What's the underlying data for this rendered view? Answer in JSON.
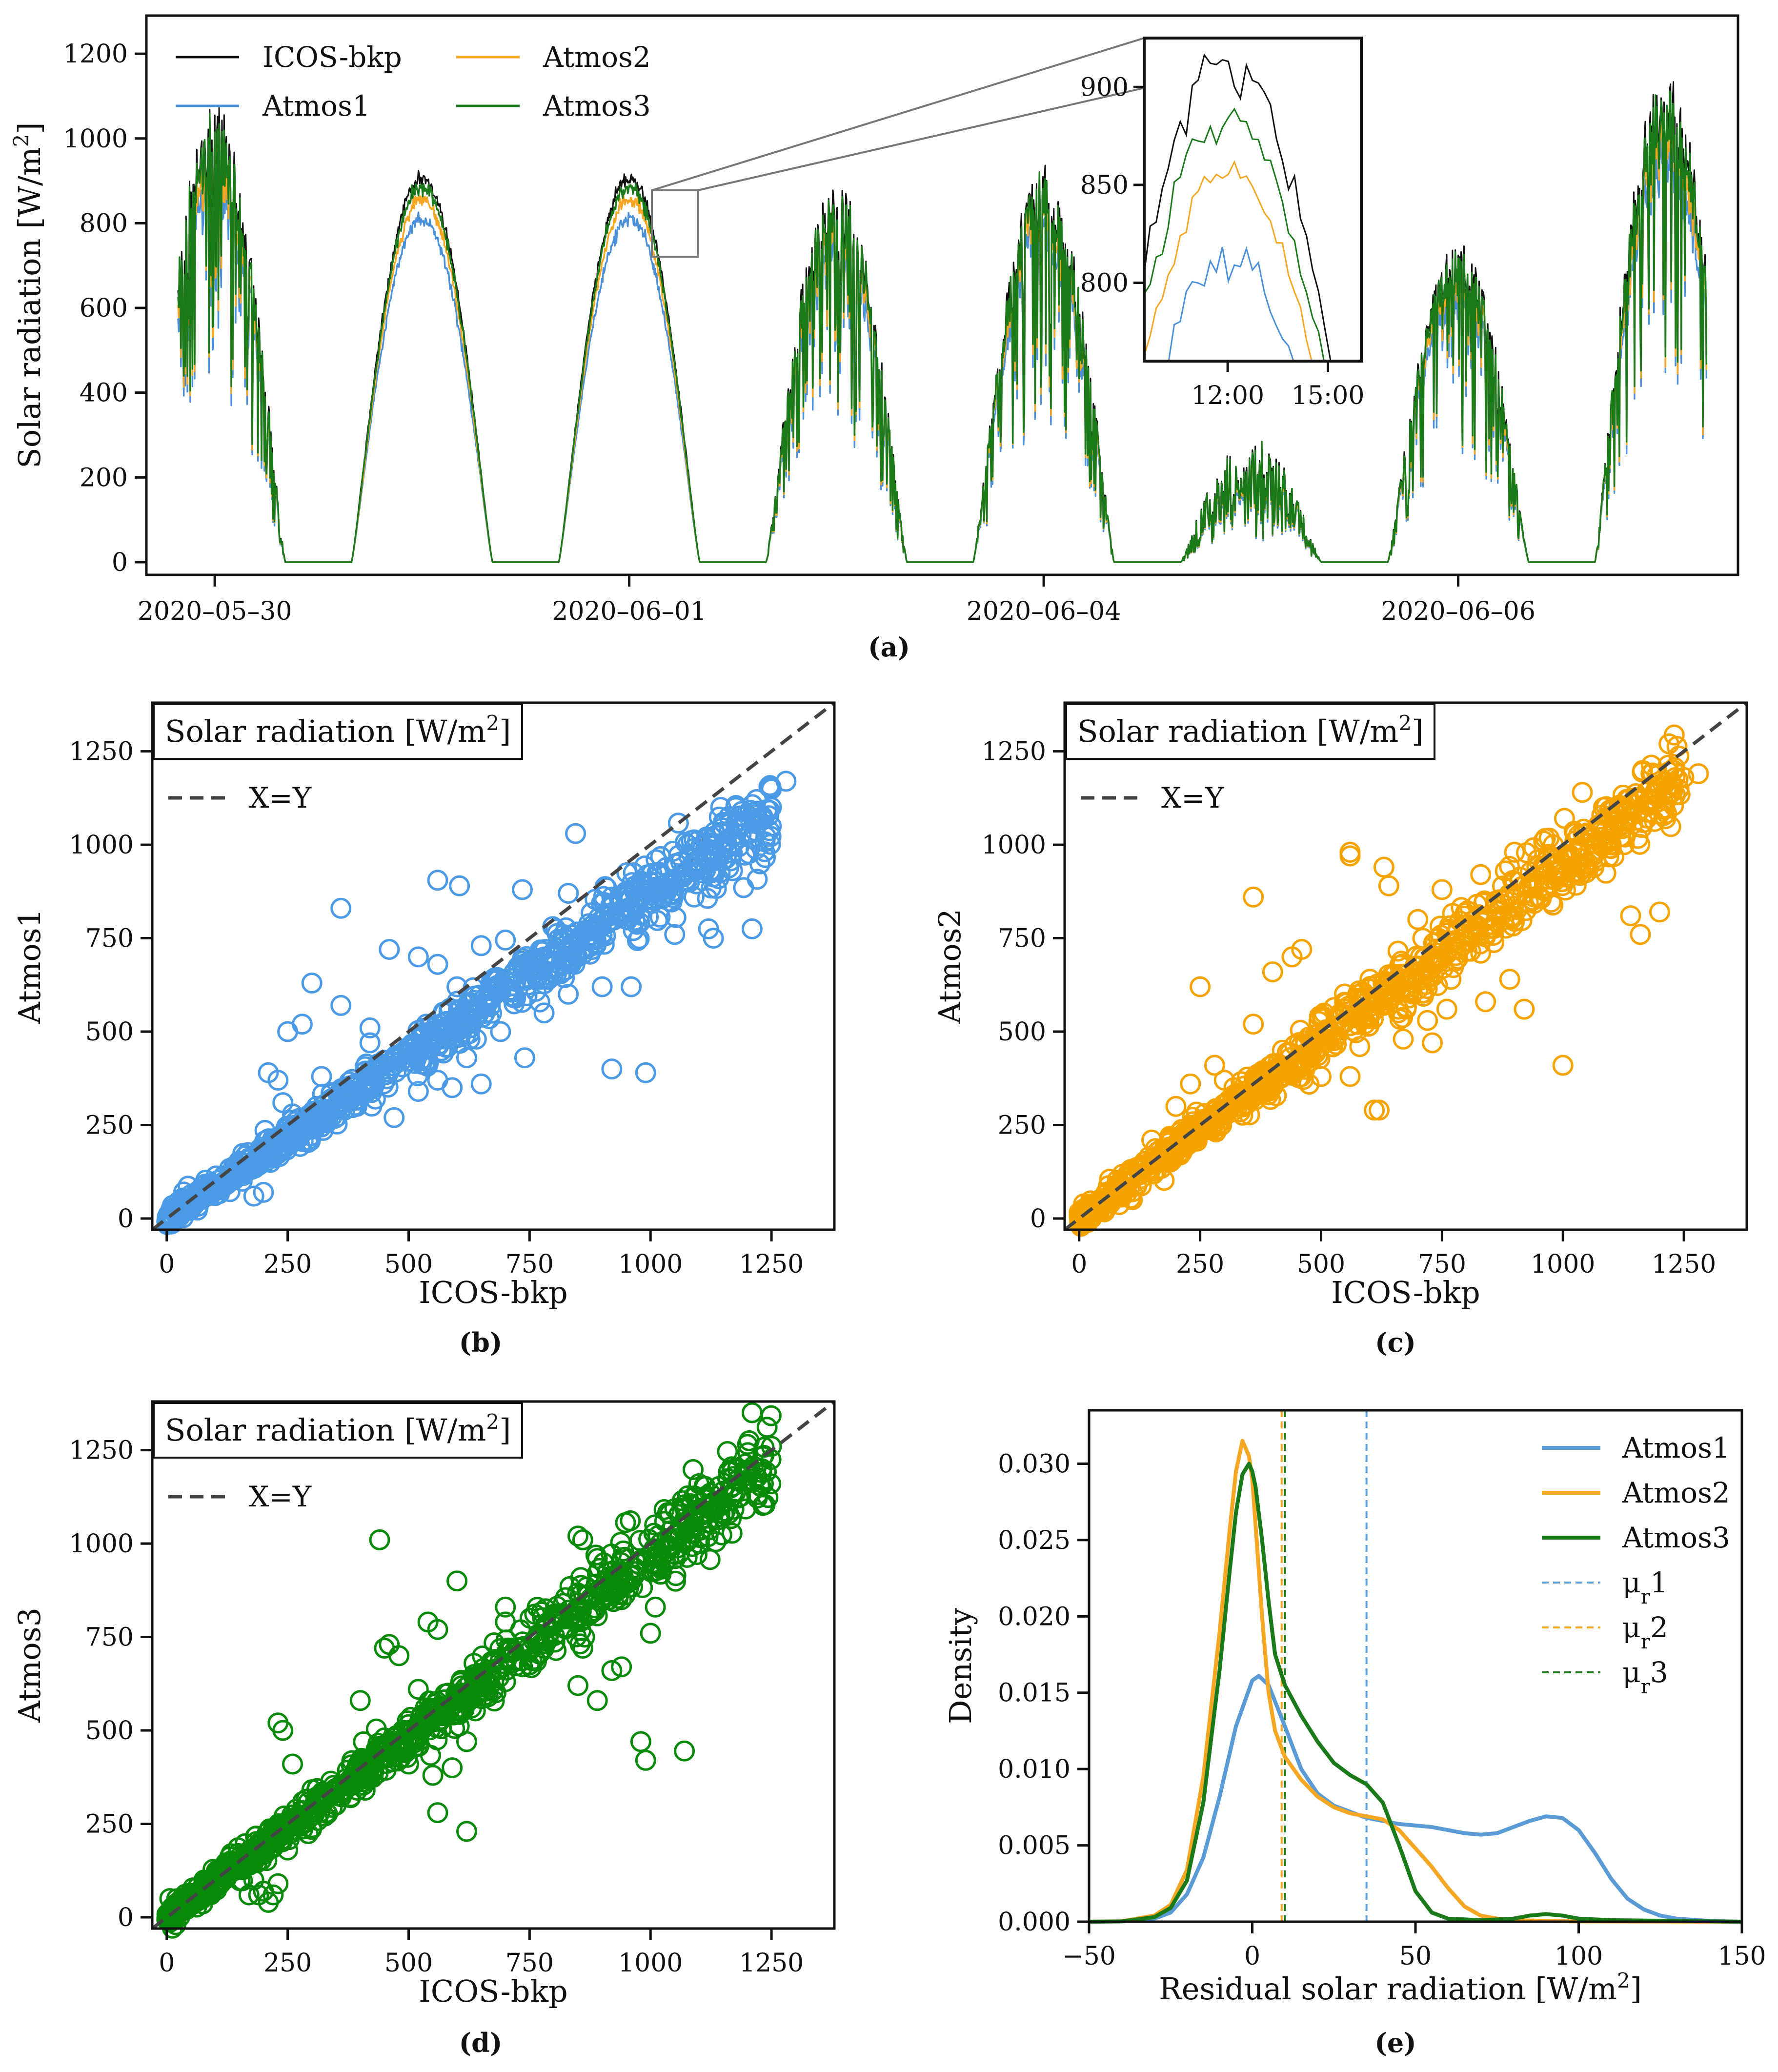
{
  "chart_data": [
    {
      "id": "a",
      "type": "line",
      "caption": "(a)",
      "ylabel": "Solar radiation [W/m",
      "ylabel_sup": "2",
      "ylabel_end": "]",
      "yticks": [
        0,
        200,
        400,
        600,
        800,
        1000,
        1200
      ],
      "ytick_labels": [
        "0",
        "200",
        "400",
        "600",
        "800",
        "1000",
        "1200"
      ],
      "ylim": [
        -30,
        1290
      ],
      "xlim_days": [
        -0.33,
        7.35
      ],
      "xticks_days": [
        0,
        2,
        4,
        6
      ],
      "xtick_labels": [
        "2020–05–30",
        "2020–06–01",
        "2020–06–04",
        "2020–06–06"
      ],
      "day_peaks": [
        {
          "day": 0.0,
          "peak": 1060,
          "cloudy": true
        },
        {
          "day": 1.0,
          "peak": 905,
          "cloudy": false
        },
        {
          "day": 2.0,
          "peak": 905,
          "cloudy": false
        },
        {
          "day": 3.0,
          "peak": 900,
          "cloudy": true
        },
        {
          "day": 4.0,
          "peak": 930,
          "cloudy": true
        },
        {
          "day": 5.0,
          "peak": 230,
          "cloudy": true
        },
        {
          "day": 6.0,
          "peak": 750,
          "cloudy": true
        },
        {
          "day": 7.0,
          "peak": 1150,
          "cloudy": true
        }
      ],
      "series": [
        {
          "name": "ICOS-bkp",
          "color": "#111111",
          "scale": 1.0
        },
        {
          "name": "Atmos1",
          "color": "#4a90d9",
          "scale": 0.895
        },
        {
          "name": "Atmos2",
          "color": "#f5a623",
          "scale": 0.945
        },
        {
          "name": "Atmos3",
          "color": "#1a7a1a",
          "scale": 0.98
        }
      ],
      "legend_labels": [
        "ICOS-bkp",
        "Atmos1",
        "Atmos2",
        "Atmos3"
      ],
      "inset": {
        "yticks": [
          800,
          850,
          900
        ],
        "ytick_labels": [
          "800",
          "850",
          "900"
        ],
        "ylim": [
          760,
          925
        ],
        "xlim_hours": [
          9.5,
          16.0
        ],
        "xticks_hours": [
          12,
          15
        ],
        "xtick_labels": [
          "12:00",
          "15:00"
        ]
      }
    },
    {
      "id": "b",
      "type": "scatter",
      "caption": "(b)",
      "title": "Solar radiation [W/m",
      "title_sup": "2",
      "title_end": "]",
      "xlabel": "ICOS-bkp",
      "ylabel": "Atmos1",
      "legend_label": "X=Y",
      "color": "#4a9ae6",
      "slope": 0.87,
      "ticks": [
        0,
        250,
        500,
        750,
        1000,
        1250
      ],
      "tick_labels": [
        "0",
        "250",
        "500",
        "750",
        "1000",
        "1250"
      ],
      "xlim": [
        -30,
        1380
      ],
      "ylim": [
        -30,
        1380
      ],
      "outliers": [
        [
          360,
          830
        ],
        [
          560,
          905
        ],
        [
          605,
          890
        ],
        [
          735,
          880
        ],
        [
          830,
          870
        ],
        [
          920,
          860
        ],
        [
          1000,
          865
        ],
        [
          845,
          1030
        ],
        [
          1000,
          900
        ],
        [
          1090,
          860
        ],
        [
          360,
          570
        ],
        [
          460,
          720
        ],
        [
          520,
          700
        ],
        [
          680,
          640
        ],
        [
          780,
          640
        ],
        [
          900,
          620
        ],
        [
          960,
          620
        ],
        [
          1120,
          775
        ],
        [
          1210,
          775
        ],
        [
          1050,
          760
        ],
        [
          1130,
          750
        ],
        [
          920,
          400
        ],
        [
          990,
          390
        ],
        [
          780,
          550
        ],
        [
          830,
          600
        ],
        [
          690,
          500
        ],
        [
          740,
          430
        ],
        [
          650,
          360
        ],
        [
          590,
          350
        ],
        [
          470,
          430
        ],
        [
          420,
          470
        ],
        [
          320,
          380
        ],
        [
          390,
          330
        ],
        [
          210,
          390
        ],
        [
          240,
          310
        ],
        [
          260,
          280
        ],
        [
          310,
          300
        ],
        [
          250,
          500
        ],
        [
          280,
          520
        ],
        [
          470,
          270
        ],
        [
          520,
          340
        ],
        [
          600,
          620
        ],
        [
          1250,
          1100
        ],
        [
          1280,
          1170
        ],
        [
          1150,
          1060
        ],
        [
          1220,
          1090
        ],
        [
          650,
          730
        ],
        [
          700,
          745
        ],
        [
          560,
          680
        ],
        [
          300,
          630
        ],
        [
          230,
          370
        ],
        [
          150,
          120
        ],
        [
          180,
          60
        ],
        [
          200,
          70
        ],
        [
          240,
          210
        ],
        [
          420,
          510
        ],
        [
          560,
          370
        ],
        [
          620,
          430
        ],
        [
          640,
          480
        ],
        [
          820,
          740
        ],
        [
          880,
          720
        ],
        [
          950,
          800
        ]
      ]
    },
    {
      "id": "c",
      "type": "scatter",
      "caption": "(c)",
      "title": "Solar radiation [W/m",
      "title_sup": "2",
      "title_end": "]",
      "xlabel": "ICOS-bkp",
      "ylabel": "Atmos2",
      "legend_label": "X=Y",
      "color": "#f5a300",
      "slope": 0.95,
      "ticks": [
        0,
        250,
        500,
        750,
        1000,
        1250
      ],
      "tick_labels": [
        "0",
        "250",
        "500",
        "750",
        "1000",
        "1250"
      ],
      "xlim": [
        -30,
        1380
      ],
      "ylim": [
        -30,
        1380
      ],
      "outliers": [
        [
          360,
          860
        ],
        [
          560,
          980
        ],
        [
          560,
          970
        ],
        [
          640,
          890
        ],
        [
          630,
          940
        ],
        [
          750,
          880
        ],
        [
          830,
          920
        ],
        [
          900,
          980
        ],
        [
          980,
          1000
        ],
        [
          960,
          1010
        ],
        [
          1080,
          1020
        ],
        [
          1100,
          990
        ],
        [
          1040,
          1140
        ],
        [
          1190,
          1140
        ],
        [
          1280,
          1190
        ],
        [
          1250,
          1180
        ],
        [
          1000,
          410
        ],
        [
          920,
          560
        ],
        [
          890,
          640
        ],
        [
          830,
          710
        ],
        [
          780,
          720
        ],
        [
          700,
          800
        ],
        [
          680,
          620
        ],
        [
          660,
          560
        ],
        [
          620,
          290
        ],
        [
          610,
          290
        ],
        [
          560,
          380
        ],
        [
          500,
          380
        ],
        [
          450,
          420
        ],
        [
          420,
          450
        ],
        [
          360,
          520
        ],
        [
          280,
          410
        ],
        [
          250,
          620
        ],
        [
          440,
          700
        ],
        [
          460,
          720
        ],
        [
          400,
          660
        ],
        [
          200,
          300
        ],
        [
          150,
          210
        ],
        [
          110,
          50
        ],
        [
          230,
          360
        ],
        [
          300,
          370
        ],
        [
          520,
          480
        ],
        [
          580,
          460
        ],
        [
          720,
          530
        ],
        [
          760,
          560
        ],
        [
          840,
          580
        ],
        [
          1140,
          810
        ],
        [
          1160,
          760
        ],
        [
          1200,
          820
        ],
        [
          1050,
          940
        ],
        [
          990,
          930
        ],
        [
          940,
          860
        ],
        [
          670,
          480
        ],
        [
          730,
          470
        ],
        [
          480,
          430
        ],
        [
          320,
          350
        ]
      ]
    },
    {
      "id": "d",
      "type": "scatter",
      "caption": "(d)",
      "title": "Solar radiation [W/m",
      "title_sup": "2",
      "title_end": "]",
      "xlabel": "ICOS-bkp",
      "ylabel": "Atmos3",
      "legend_label": "X=Y",
      "color": "#0a8a0a",
      "slope": 0.97,
      "ticks": [
        0,
        250,
        500,
        750,
        1000,
        1250
      ],
      "tick_labels": [
        "0",
        "250",
        "500",
        "750",
        "1000",
        "1250"
      ],
      "xlim": [
        -30,
        1380
      ],
      "ylim": [
        -30,
        1380
      ],
      "outliers": [
        [
          440,
          1010
        ],
        [
          850,
          1020
        ],
        [
          860,
          1010
        ],
        [
          890,
          960
        ],
        [
          600,
          900
        ],
        [
          540,
          790
        ],
        [
          560,
          770
        ],
        [
          450,
          720
        ],
        [
          460,
          730
        ],
        [
          400,
          580
        ],
        [
          1210,
          1350
        ],
        [
          1250,
          1260
        ],
        [
          1180,
          1200
        ],
        [
          1100,
          1160
        ],
        [
          1040,
          1080
        ],
        [
          980,
          470
        ],
        [
          990,
          420
        ],
        [
          1070,
          445
        ],
        [
          890,
          580
        ],
        [
          850,
          620
        ],
        [
          920,
          660
        ],
        [
          940,
          670
        ],
        [
          860,
          720
        ],
        [
          820,
          840
        ],
        [
          700,
          830
        ],
        [
          1000,
          760
        ],
        [
          1010,
          830
        ],
        [
          630,
          560
        ],
        [
          620,
          470
        ],
        [
          590,
          400
        ],
        [
          550,
          380
        ],
        [
          500,
          410
        ],
        [
          450,
          480
        ],
        [
          410,
          340
        ],
        [
          380,
          320
        ],
        [
          350,
          300
        ],
        [
          330,
          280
        ],
        [
          560,
          280
        ],
        [
          620,
          230
        ],
        [
          240,
          500
        ],
        [
          230,
          520
        ],
        [
          260,
          410
        ],
        [
          180,
          100
        ],
        [
          190,
          60
        ],
        [
          200,
          70
        ],
        [
          210,
          40
        ],
        [
          220,
          60
        ],
        [
          230,
          90
        ],
        [
          170,
          60
        ],
        [
          210,
          230
        ],
        [
          250,
          180
        ],
        [
          300,
          240
        ],
        [
          480,
          700
        ],
        [
          520,
          610
        ],
        [
          700,
          790
        ],
        [
          760,
          690
        ],
        [
          780,
          720
        ],
        [
          940,
          850
        ],
        [
          960,
          900
        ],
        [
          1020,
          1000
        ],
        [
          1150,
          1140
        ],
        [
          1180,
          1170
        ],
        [
          1230,
          1190
        ]
      ]
    },
    {
      "id": "e",
      "type": "line",
      "caption": "(e)",
      "xlabel": "Residual solar radiation [W/m",
      "xlabel_sup": "2",
      "xlabel_end": "]",
      "ylabel": "Density",
      "xlim": [
        -50,
        150
      ],
      "ylim": [
        0,
        0.0335
      ],
      "xticks": [
        -50,
        0,
        50,
        100,
        150
      ],
      "xtick_labels": [
        "−50",
        "0",
        "50",
        "100",
        "150"
      ],
      "yticks": [
        0.0,
        0.005,
        0.01,
        0.015,
        0.02,
        0.025,
        0.03
      ],
      "ytick_labels": [
        "0.000",
        "0.005",
        "0.010",
        "0.015",
        "0.020",
        "0.025",
        "0.030"
      ],
      "series": [
        {
          "name": "Atmos1",
          "color": "#5b9bd5",
          "x": [
            -50,
            -40,
            -30,
            -25,
            -20,
            -15,
            -10,
            -5,
            0,
            2,
            5,
            10,
            15,
            20,
            25,
            30,
            35,
            40,
            45,
            50,
            55,
            60,
            65,
            70,
            75,
            80,
            85,
            90,
            95,
            100,
            105,
            110,
            115,
            120,
            125,
            130,
            140,
            150
          ],
          "y": [
            0,
            2e-05,
            0.0002,
            0.0006,
            0.0018,
            0.0042,
            0.0082,
            0.0128,
            0.0158,
            0.0161,
            0.0155,
            0.0128,
            0.01,
            0.0084,
            0.0076,
            0.0072,
            0.0068,
            0.0066,
            0.0064,
            0.0063,
            0.0062,
            0.006,
            0.0058,
            0.0057,
            0.0058,
            0.0062,
            0.0066,
            0.0069,
            0.0068,
            0.006,
            0.0045,
            0.0028,
            0.0015,
            0.0008,
            0.0004,
            0.0002,
            5e-05,
            0
          ]
        },
        {
          "name": "Atmos2",
          "color": "#f5a623",
          "x": [
            -50,
            -40,
            -30,
            -25,
            -20,
            -15,
            -10,
            -7,
            -5,
            -3,
            -1,
            0,
            1,
            3,
            5,
            7,
            10,
            15,
            20,
            25,
            30,
            35,
            40,
            45,
            50,
            55,
            60,
            65,
            70,
            75,
            80,
            90,
            100,
            150
          ],
          "y": [
            0,
            3e-05,
            0.0004,
            0.0011,
            0.0034,
            0.0095,
            0.019,
            0.0255,
            0.0295,
            0.0315,
            0.0305,
            0.029,
            0.026,
            0.02,
            0.015,
            0.0125,
            0.0108,
            0.0093,
            0.0082,
            0.0075,
            0.0071,
            0.0069,
            0.0067,
            0.006,
            0.0048,
            0.0036,
            0.0022,
            0.001,
            0.0004,
            0.0002,
            0.0001,
            5e-05,
            2e-05,
            0
          ]
        },
        {
          "name": "Atmos3",
          "color": "#1a7a1a",
          "x": [
            -50,
            -40,
            -30,
            -25,
            -20,
            -15,
            -10,
            -7,
            -5,
            -3,
            -1,
            0,
            1,
            3,
            5,
            7,
            10,
            15,
            20,
            25,
            30,
            35,
            40,
            45,
            50,
            55,
            60,
            70,
            80,
            85,
            90,
            95,
            100,
            110,
            150
          ],
          "y": [
            0,
            2e-05,
            0.0003,
            0.0009,
            0.0027,
            0.0078,
            0.0165,
            0.0228,
            0.0268,
            0.0293,
            0.03,
            0.0295,
            0.0285,
            0.025,
            0.021,
            0.0175,
            0.0155,
            0.0135,
            0.0118,
            0.0104,
            0.0096,
            0.009,
            0.0078,
            0.005,
            0.002,
            0.0006,
            0.0002,
            0.0001,
            0.0002,
            0.0004,
            0.0005,
            0.0004,
            0.0002,
            0.0001,
            0
          ]
        }
      ],
      "means": [
        {
          "name": "μ",
          "sub": "r",
          "suffix": "1",
          "x": 35,
          "color": "#5b9bd5"
        },
        {
          "name": "μ",
          "sub": "r",
          "suffix": "2",
          "x": 9,
          "color": "#f5a623"
        },
        {
          "name": "μ",
          "sub": "r",
          "suffix": "3",
          "x": 10,
          "color": "#1a7a1a"
        }
      ]
    }
  ]
}
